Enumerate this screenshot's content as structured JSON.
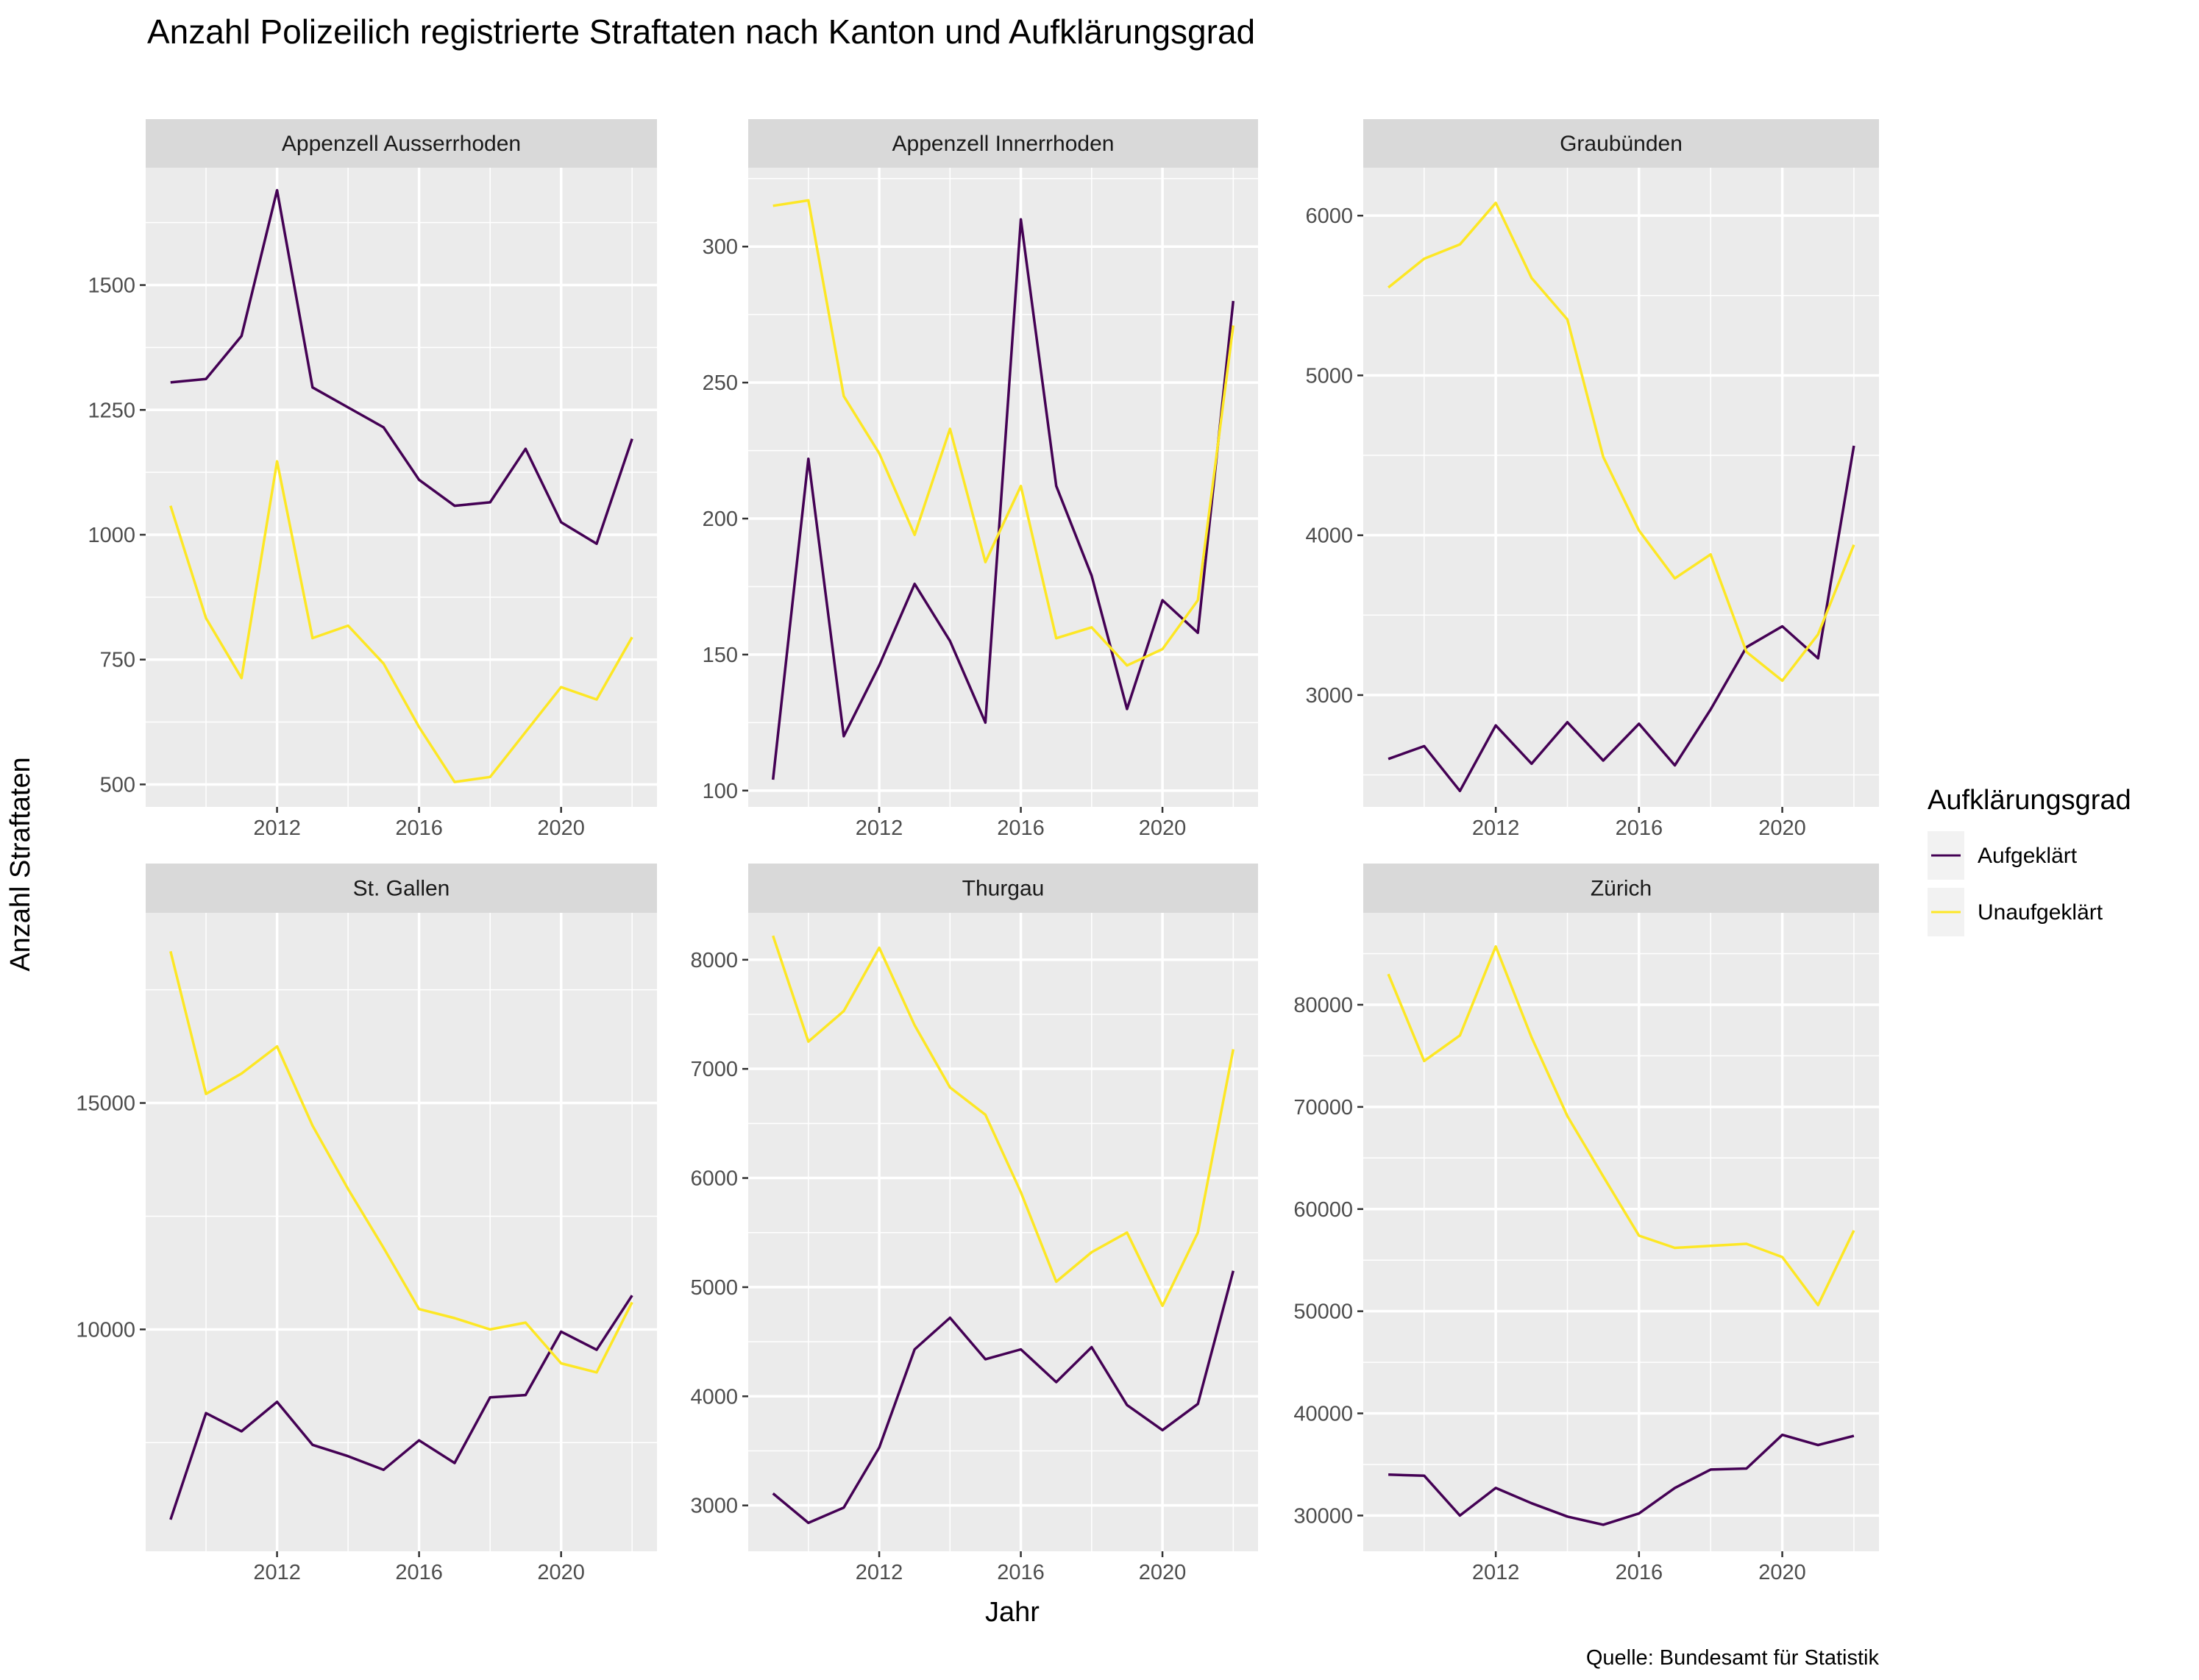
{
  "chart_data": {
    "type": "line",
    "title": "Anzahl Polizeilich registrierte Straftaten nach Kanton und Aufklärungsgrad",
    "xlabel": "Jahr",
    "ylabel": "Anzahl Straftaten",
    "caption": "Quelle: Bundesamt für Statistik",
    "legend": {
      "title": "Aufklärungsgrad",
      "position": "right",
      "entries": [
        {
          "name": "Aufgeklärt",
          "color": "#440154"
        },
        {
          "name": "Unaufgeklärt",
          "color": "#FDE725"
        }
      ]
    },
    "grid": true,
    "x": [
      2009,
      2010,
      2011,
      2012,
      2013,
      2014,
      2015,
      2016,
      2017,
      2018,
      2019,
      2020,
      2021,
      2022
    ],
    "xlim": [
      2008.3,
      2022.7
    ],
    "xticks": [
      2012,
      2016,
      2020
    ],
    "panels": [
      {
        "name": "Appenzell Ausserrhoden",
        "ylim": [
          455,
          1735
        ],
        "yticks": [
          500,
          750,
          1000,
          1250,
          1500
        ],
        "series": [
          {
            "name": "Aufgeklärt",
            "values": [
              1305,
              1312,
              1398,
              1690,
              1295,
              1255,
              1215,
              1110,
              1058,
              1065,
              1172,
              1025,
              982,
              1192
            ]
          },
          {
            "name": "Unaufgeklärt",
            "values": [
              1058,
              833,
              713,
              1147,
              793,
              818,
              742,
              615,
              505,
              515,
              605,
              695,
              670,
              795
            ]
          }
        ]
      },
      {
        "name": "Appenzell Innerrhoden",
        "ylim": [
          94,
          329
        ],
        "yticks": [
          100,
          150,
          200,
          250,
          300
        ],
        "series": [
          {
            "name": "Aufgeklärt",
            "values": [
              104,
              222,
              120,
              146,
              176,
              155,
              125,
              310,
              212,
              179,
              130,
              170,
              158,
              280
            ]
          },
          {
            "name": "Unaufgeklärt",
            "values": [
              315,
              317,
              245,
              224,
              194,
              233,
              184,
              212,
              156,
              160,
              146,
              152,
              170,
              271
            ]
          }
        ]
      },
      {
        "name": "Graubünden",
        "ylim": [
          2300,
          6300
        ],
        "yticks": [
          3000,
          4000,
          5000,
          6000
        ],
        "series": [
          {
            "name": "Aufgeklärt",
            "values": [
              2600,
              2680,
              2400,
              2810,
              2570,
              2830,
              2590,
              2820,
              2560,
              2910,
              3300,
              3430,
              3230,
              4560
            ]
          },
          {
            "name": "Unaufgeklärt",
            "values": [
              5550,
              5730,
              5820,
              6080,
              5610,
              5350,
              4490,
              4030,
              3730,
              3880,
              3270,
              3090,
              3380,
              3940
            ]
          }
        ]
      },
      {
        "name": "St. Gallen",
        "ylim": [
          5100,
          19200
        ],
        "yticks": [
          10000,
          15000
        ],
        "series": [
          {
            "name": "Aufgeklärt",
            "values": [
              5800,
              8150,
              7750,
              8400,
              7450,
              7200,
              6900,
              7550,
              7050,
              8500,
              8550,
              9950,
              9550,
              10750
            ]
          },
          {
            "name": "Unaufgeklärt",
            "values": [
              18350,
              15200,
              15650,
              16250,
              14500,
              13100,
              11800,
              10450,
              10250,
              10000,
              10150,
              9250,
              9050,
              10600
            ]
          }
        ]
      },
      {
        "name": "Thurgau",
        "ylim": [
          2580,
          8430
        ],
        "yticks": [
          3000,
          4000,
          5000,
          6000,
          7000,
          8000
        ],
        "series": [
          {
            "name": "Aufgeklärt",
            "values": [
              3110,
              2840,
              2980,
              3530,
              4430,
              4720,
              4340,
              4430,
              4130,
              4450,
              3920,
              3690,
              3930,
              5150
            ]
          },
          {
            "name": "Unaufgeklärt",
            "values": [
              8220,
              7250,
              7530,
              8110,
              7400,
              6830,
              6580,
              5870,
              5050,
              5320,
              5500,
              4830,
              5500,
              7180
            ]
          }
        ]
      },
      {
        "name": "Zürich",
        "ylim": [
          26500,
          89000
        ],
        "yticks": [
          30000,
          40000,
          50000,
          60000,
          70000,
          80000
        ],
        "series": [
          {
            "name": "Aufgeklärt",
            "values": [
              34000,
              33900,
              30000,
              32700,
              31200,
              29900,
              29100,
              30200,
              32700,
              34500,
              34600,
              37900,
              36900,
              37800
            ]
          },
          {
            "name": "Unaufgeklärt",
            "values": [
              83000,
              74500,
              77000,
              85700,
              76800,
              69100,
              63200,
              57400,
              56200,
              56400,
              56600,
              55300,
              50600,
              57900
            ]
          }
        ]
      }
    ]
  }
}
